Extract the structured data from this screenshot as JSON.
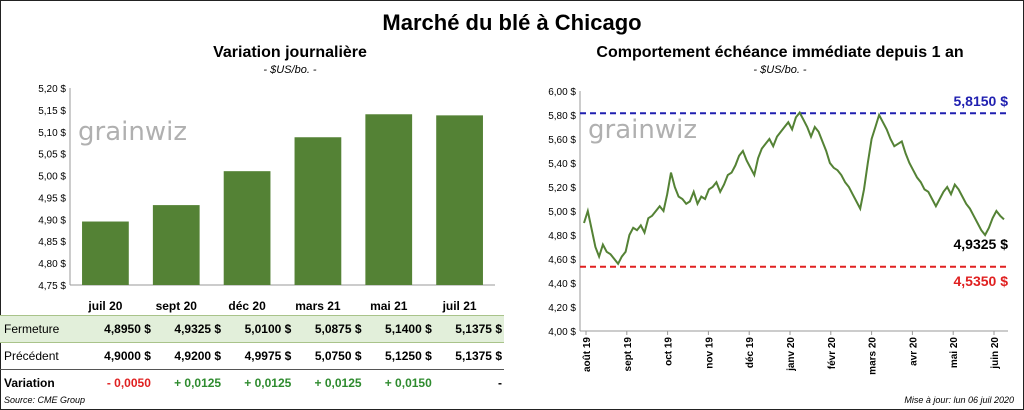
{
  "title": "Marché du blé à Chicago",
  "source": "Source: CME Group",
  "updated": "Mise à jour: lun 06 juil 2020",
  "watermark": "grainwiz",
  "colors": {
    "bar": "#548235",
    "line": "#548235",
    "max": "#1f1fb0",
    "min": "#e02020"
  },
  "chart_data": [
    {
      "type": "bar",
      "title": "Variation  journalière",
      "subtitle": "- $US/bo. -",
      "categories": [
        "juil 20",
        "sept 20",
        "déc 20",
        "mars 21",
        "mai 21",
        "juil 21"
      ],
      "values": [
        4.895,
        4.9325,
        5.01,
        5.0875,
        5.14,
        5.1375
      ],
      "ylim": [
        4.75,
        5.2
      ],
      "yticks": [
        "4,75 $",
        "4,80 $",
        "4,85 $",
        "4,90 $",
        "4,95 $",
        "5,00 $",
        "5,05 $",
        "5,10 $",
        "5,15 $",
        "5,20 $"
      ],
      "grid": false
    },
    {
      "type": "line",
      "title": "Comportement  échéance immédiate depuis 1 an",
      "subtitle": "- $US/bo. -",
      "ylim": [
        4.0,
        6.0
      ],
      "yticks": [
        "4,00 $",
        "4,20 $",
        "4,40 $",
        "4,60 $",
        "4,80 $",
        "5,00 $",
        "5,20 $",
        "5,40 $",
        "5,60 $",
        "5,80 $",
        "6,00 $"
      ],
      "xticks": [
        "août 19",
        "sept 19",
        "oct 19",
        "nov 19",
        "déc 19",
        "janv 20",
        "févr 20",
        "mars 20",
        "avr 20",
        "mai 20",
        "juin 20"
      ],
      "y": [
        4.9,
        5.0,
        4.85,
        4.7,
        4.62,
        4.72,
        4.66,
        4.64,
        4.6,
        4.56,
        4.62,
        4.66,
        4.8,
        4.86,
        4.84,
        4.88,
        4.82,
        4.94,
        4.96,
        5.0,
        5.04,
        5.0,
        5.14,
        5.32,
        5.2,
        5.12,
        5.1,
        5.06,
        5.08,
        5.16,
        5.06,
        5.12,
        5.1,
        5.18,
        5.2,
        5.24,
        5.16,
        5.22,
        5.3,
        5.32,
        5.38,
        5.46,
        5.5,
        5.42,
        5.36,
        5.3,
        5.44,
        5.52,
        5.56,
        5.6,
        5.54,
        5.62,
        5.66,
        5.7,
        5.74,
        5.68,
        5.78,
        5.82,
        5.76,
        5.7,
        5.62,
        5.7,
        5.66,
        5.58,
        5.5,
        5.4,
        5.36,
        5.34,
        5.3,
        5.24,
        5.2,
        5.14,
        5.08,
        5.02,
        5.18,
        5.4,
        5.6,
        5.7,
        5.8,
        5.74,
        5.68,
        5.6,
        5.54,
        5.56,
        5.58,
        5.48,
        5.4,
        5.34,
        5.28,
        5.24,
        5.18,
        5.16,
        5.1,
        5.04,
        5.1,
        5.16,
        5.2,
        5.14,
        5.22,
        5.18,
        5.12,
        5.06,
        5.02,
        4.96,
        4.9,
        4.84,
        4.8,
        4.86,
        4.94,
        5.0,
        4.96,
        4.93
      ],
      "max": {
        "value": 5.815,
        "label": "5,8150 $"
      },
      "min": {
        "value": 4.535,
        "label": "4,5350 $"
      },
      "last": {
        "value": 4.9325,
        "label": "4,9325 $"
      }
    }
  ],
  "table": {
    "rows": [
      {
        "label": "Fermeture",
        "values": [
          "4,8950  $",
          "4,9325  $",
          "5,0100  $",
          "5,0875  $",
          "5,1400  $",
          "5,1375  $"
        ]
      },
      {
        "label": "Précédent",
        "values": [
          "4,9000  $",
          "4,9200  $",
          "4,9975  $",
          "5,0750  $",
          "5,1250  $",
          "5,1375  $"
        ]
      },
      {
        "label": "Variation",
        "values": [
          "- 0,0050",
          "+ 0,0125",
          "+ 0,0125",
          "+ 0,0125",
          "+ 0,0150",
          "-"
        ]
      }
    ]
  }
}
